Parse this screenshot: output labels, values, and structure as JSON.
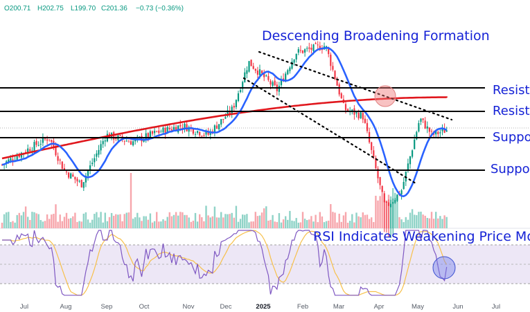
{
  "ohlc": {
    "open_label": "O200.71",
    "high_label": "H202.75",
    "low_label": "L199.70",
    "close_label": "C201.36",
    "change_label": "−0.73 (−0.36%)"
  },
  "colors": {
    "up": "#089981",
    "down": "#f23645",
    "ma50": "#2962ff",
    "ma200": "#e0171d",
    "annotation": "#1522d6",
    "rsi": "#7e57c2",
    "rsi_ma": "#f7c04a",
    "rsi_band": "#ede7f6",
    "volume_up": "#8fd3c7",
    "volume_down": "#f7a6ac"
  },
  "chart_data": {
    "type": "candlestick",
    "title": "Descending Broadening Formation",
    "x_tick_labels": [
      "Jul",
      "Aug",
      "Sep",
      "Oct",
      "Nov",
      "Dec",
      "2025",
      "Feb",
      "Mar",
      "Apr",
      "May",
      "Jun",
      "Jul"
    ],
    "last_close": 201.36,
    "approx_close_series": [
      {
        "date": "2024-06-01",
        "value": 186
      },
      {
        "date": "2024-06-20",
        "value": 192
      },
      {
        "date": "2024-07-10",
        "value": 198
      },
      {
        "date": "2024-07-22",
        "value": 184
      },
      {
        "date": "2024-08-05",
        "value": 178
      },
      {
        "date": "2024-08-25",
        "value": 199
      },
      {
        "date": "2024-09-15",
        "value": 196
      },
      {
        "date": "2024-10-05",
        "value": 200
      },
      {
        "date": "2024-10-25",
        "value": 203
      },
      {
        "date": "2024-11-15",
        "value": 199
      },
      {
        "date": "2024-12-05",
        "value": 210
      },
      {
        "date": "2024-12-18",
        "value": 230
      },
      {
        "date": "2025-01-10",
        "value": 218
      },
      {
        "date": "2025-01-25",
        "value": 234
      },
      {
        "date": "2025-02-18",
        "value": 237
      },
      {
        "date": "2025-03-05",
        "value": 210
      },
      {
        "date": "2025-03-20",
        "value": 207
      },
      {
        "date": "2025-04-07",
        "value": 168
      },
      {
        "date": "2025-04-20",
        "value": 175
      },
      {
        "date": "2025-05-05",
        "value": 206
      },
      {
        "date": "2025-05-15",
        "value": 199
      },
      {
        "date": "2025-05-28",
        "value": 201.36
      }
    ],
    "horizontal_levels": [
      {
        "label": "Resistance",
        "value": 219
      },
      {
        "label": "Resistance",
        "value": 209
      },
      {
        "label": "Support",
        "value": 194
      },
      {
        "label": "Support",
        "value": 168
      }
    ],
    "overlays": [
      "50-day moving average",
      "200-day moving average",
      "descending broadening formation trendlines"
    ],
    "secondary_title": "RSI Indicates Weakening Price Mo",
    "panels": [
      "price",
      "volume",
      "RSI"
    ]
  },
  "labels": {
    "resistance_upper": "Resist",
    "resistance_lower": "Resist",
    "support_upper": "Suppo",
    "support_lower": "Suppo"
  }
}
